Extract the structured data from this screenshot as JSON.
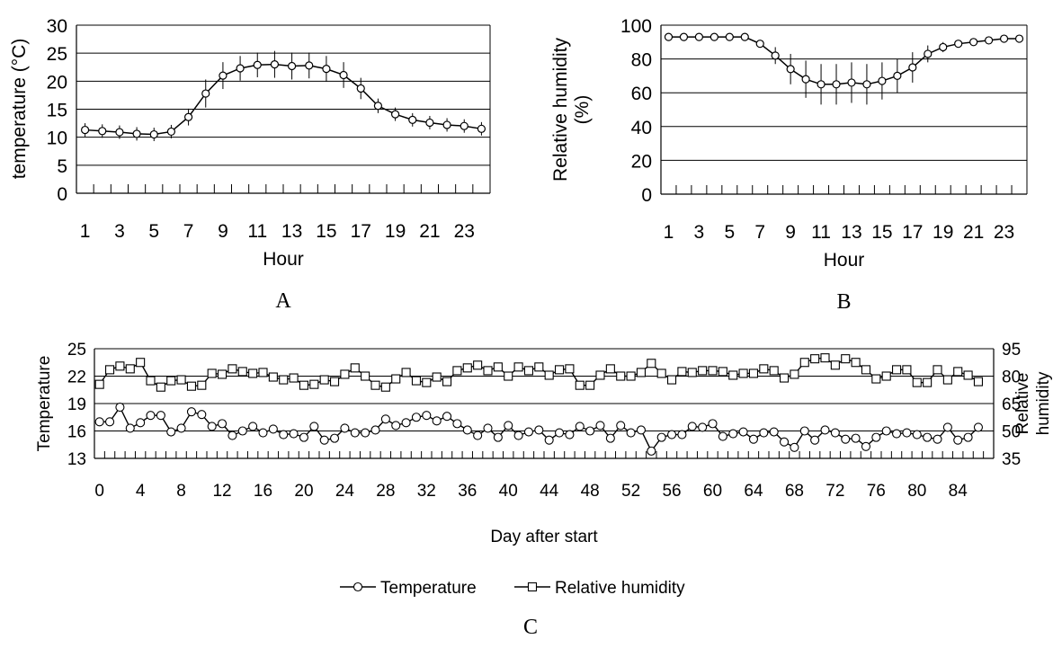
{
  "chart_data": [
    {
      "panel": "A",
      "type": "line",
      "xlabel": "Hour",
      "ylabel": "temperature (°C)",
      "ylim": [
        0,
        30
      ],
      "yticks": [
        0,
        5,
        10,
        15,
        20,
        25,
        30
      ],
      "xticklabels": [
        "1",
        "3",
        "5",
        "7",
        "9",
        "11",
        "13",
        "15",
        "17",
        "19",
        "21",
        "23"
      ],
      "grid": true,
      "x": [
        1,
        2,
        3,
        4,
        5,
        6,
        7,
        8,
        9,
        10,
        11,
        12,
        13,
        14,
        15,
        16,
        17,
        18,
        19,
        20,
        21,
        22,
        23,
        24
      ],
      "series": [
        {
          "values": [
            11.3,
            11.1,
            10.9,
            10.6,
            10.5,
            11.0,
            13.6,
            17.8,
            21.0,
            22.3,
            22.9,
            23.0,
            22.7,
            22.8,
            22.2,
            21.1,
            18.7,
            15.6,
            14.1,
            13.1,
            12.6,
            12.2,
            12.0,
            11.5
          ],
          "errors": [
            1.2,
            1.2,
            1.2,
            1.2,
            1.2,
            1.2,
            1.5,
            2.5,
            2.4,
            2.2,
            2.2,
            2.4,
            2.4,
            2.3,
            2.3,
            2.3,
            1.9,
            1.3,
            1.2,
            1.2,
            1.2,
            1.2,
            1.2,
            1.2
          ]
        }
      ],
      "marker": "circle",
      "label": "A"
    },
    {
      "panel": "B",
      "type": "line",
      "xlabel": "Hour",
      "ylabel": "Relative humidity (%)",
      "ylim": [
        0,
        100
      ],
      "yticks": [
        0,
        20,
        40,
        60,
        80,
        100
      ],
      "xticklabels": [
        "1",
        "3",
        "5",
        "7",
        "9",
        "11",
        "13",
        "15",
        "17",
        "19",
        "21",
        "23"
      ],
      "grid": true,
      "x": [
        1,
        2,
        3,
        4,
        5,
        6,
        7,
        8,
        9,
        10,
        11,
        12,
        13,
        14,
        15,
        16,
        17,
        18,
        19,
        20,
        21,
        22,
        23,
        24
      ],
      "series": [
        {
          "values": [
            93,
            93,
            93,
            93,
            93,
            93,
            89,
            82,
            74,
            68,
            65,
            65,
            66,
            65,
            67,
            70,
            75,
            83,
            87,
            89,
            90,
            91,
            92,
            92
          ],
          "errors": [
            0,
            0,
            0,
            0,
            0,
            0,
            2,
            5,
            9,
            11,
            12,
            12,
            12,
            12,
            11,
            10,
            9,
            5,
            3,
            0,
            0,
            0,
            0,
            0
          ]
        }
      ],
      "marker": "circle",
      "label": "B"
    },
    {
      "panel": "C",
      "type": "line",
      "xlabel": "Day after start",
      "ylabel_left": "Temperature",
      "ylabel_right": "Relative humidity",
      "ylim_left": [
        13,
        25
      ],
      "yticks_left": [
        13,
        16,
        19,
        22,
        25
      ],
      "ylim_right": [
        35,
        95
      ],
      "yticks_right": [
        35,
        50,
        65,
        80,
        95
      ],
      "xticklabels": [
        "0",
        "4",
        "8",
        "12",
        "16",
        "20",
        "24",
        "28",
        "32",
        "36",
        "40",
        "44",
        "48",
        "52",
        "56",
        "60",
        "64",
        "68",
        "72",
        "76",
        "80",
        "84"
      ],
      "grid": true,
      "legend_position": "bottom",
      "series": [
        {
          "name": "Temperature",
          "axis": "left",
          "marker": "circle",
          "values": [
            17.0,
            17.0,
            18.6,
            16.3,
            16.9,
            17.7,
            17.7,
            15.9,
            16.3,
            18.1,
            17.8,
            16.5,
            16.8,
            15.5,
            16.0,
            16.5,
            15.8,
            16.2,
            15.6,
            15.7,
            15.3,
            16.5,
            15.0,
            15.2,
            16.3,
            15.8,
            15.8,
            16.1,
            17.3,
            16.6,
            16.9,
            17.5,
            17.7,
            17.1,
            17.6,
            16.8,
            16.1,
            15.5,
            16.3,
            15.3,
            16.6,
            15.5,
            15.9,
            16.1,
            15.0,
            15.8,
            15.6,
            16.5,
            16.0,
            16.6,
            15.2,
            16.6,
            15.8,
            16.1,
            13.8,
            15.3,
            15.6,
            15.6,
            16.5,
            16.4,
            16.8,
            15.4,
            15.7,
            15.9,
            15.1,
            15.8,
            15.9,
            14.8,
            14.2,
            16.0,
            15.0,
            16.1,
            15.8,
            15.1,
            15.2,
            14.3,
            15.3,
            16.0,
            15.7,
            15.8,
            15.6,
            15.3,
            15.1,
            16.4,
            15.0,
            15.3,
            16.4
          ]
        },
        {
          "name": "Relative humidity",
          "axis": "right",
          "marker": "square",
          "values": [
            75.5,
            83.5,
            85.5,
            84.0,
            87.5,
            77.5,
            74.0,
            77.5,
            78.0,
            74.5,
            75.0,
            81.5,
            81.0,
            84.0,
            82.5,
            81.5,
            82.0,
            79.5,
            78.0,
            79.0,
            75.0,
            75.5,
            78.0,
            77.0,
            81.0,
            84.5,
            80.0,
            75.0,
            74.0,
            78.5,
            82.0,
            77.5,
            76.5,
            79.5,
            77.0,
            83.0,
            84.5,
            86.0,
            83.0,
            85.0,
            80.0,
            85.0,
            83.0,
            85.0,
            80.5,
            83.5,
            84.0,
            75.0,
            75.0,
            80.5,
            84.0,
            80.0,
            80.0,
            82.0,
            87.0,
            81.5,
            78.0,
            82.5,
            82.0,
            83.0,
            83.0,
            82.5,
            80.5,
            81.5,
            81.5,
            84.0,
            83.0,
            79.0,
            81.0,
            87.5,
            89.5,
            90.0,
            86.0,
            89.5,
            87.5,
            83.5,
            78.5,
            80.0,
            83.5,
            83.5,
            76.5,
            76.5,
            83.5,
            78.0,
            82.5,
            80.5,
            77.0
          ]
        }
      ],
      "label": "C"
    }
  ]
}
